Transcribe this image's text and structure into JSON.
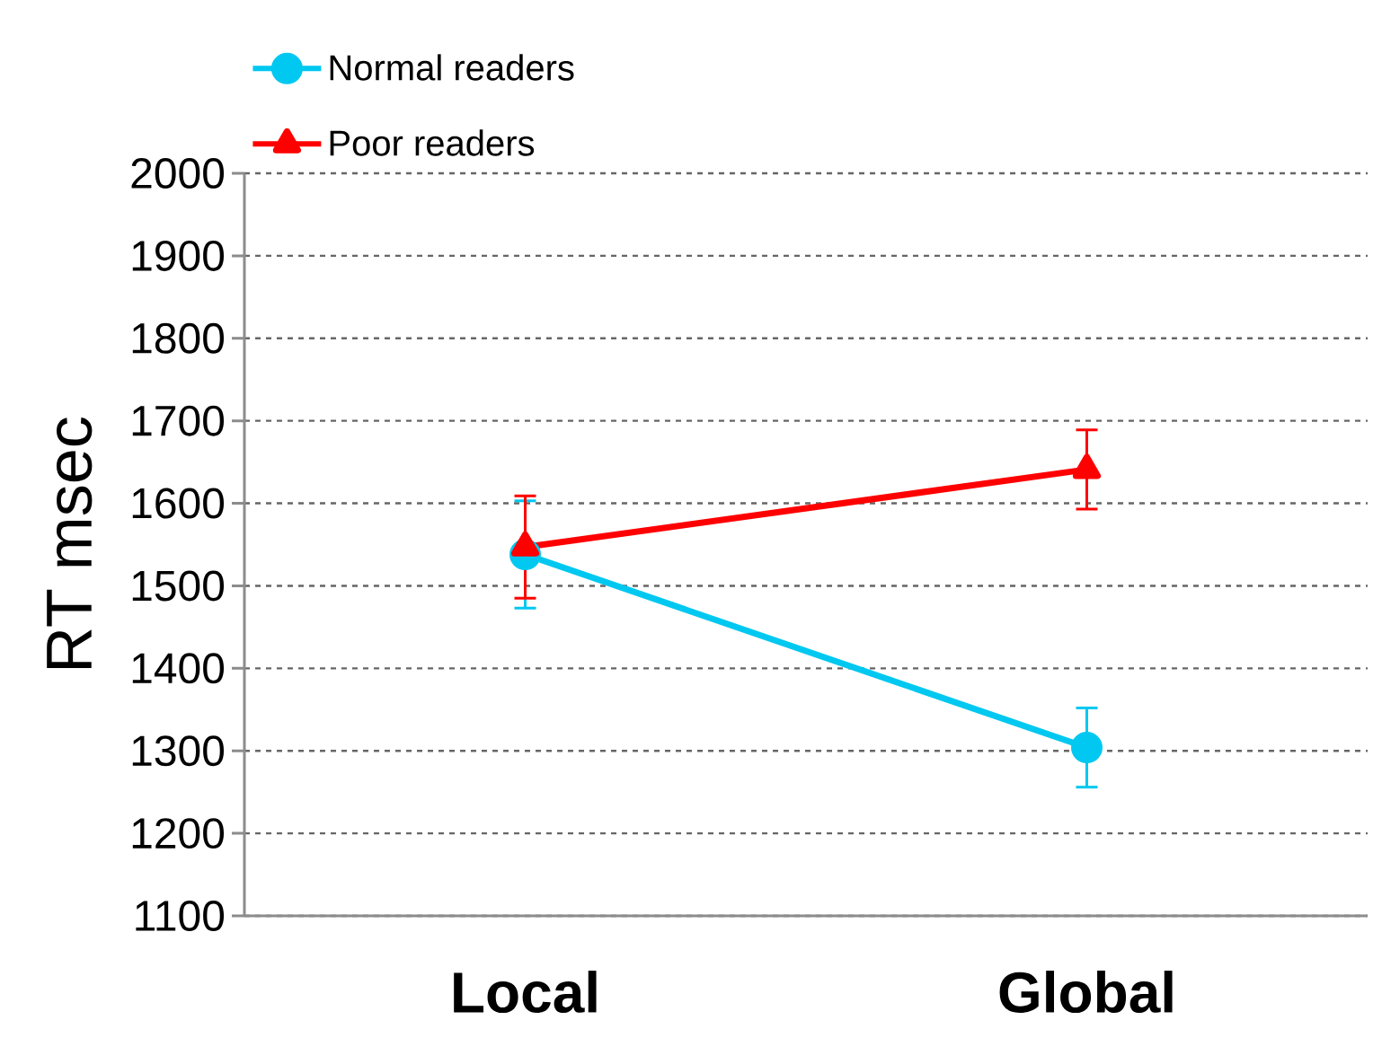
{
  "chart_data": {
    "type": "line",
    "ylabel": "RT msec",
    "categories": [
      "Local",
      "Global"
    ],
    "series": [
      {
        "name": "Normal readers",
        "color": "#00c8f0",
        "marker": "circle",
        "values": [
          1538,
          1304
        ],
        "errors": [
          65,
          48
        ]
      },
      {
        "name": "Poor readers",
        "color": "#ff0000",
        "marker": "triangle",
        "values": [
          1547,
          1641
        ],
        "errors": [
          62,
          48
        ]
      }
    ],
    "ylim": [
      1100,
      2000
    ],
    "yticks": [
      1100,
      1200,
      1300,
      1400,
      1500,
      1600,
      1700,
      1800,
      1900,
      2000
    ],
    "grid": "y",
    "legend": "top left"
  }
}
